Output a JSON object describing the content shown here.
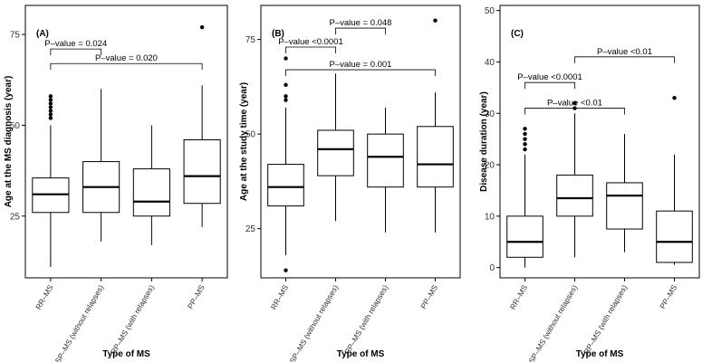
{
  "figure": {
    "background": "#ffffff",
    "line_color": "#000000",
    "box_fill": "#ffffff"
  },
  "chart_data": [
    {
      "type": "boxplot",
      "panel": "(A)",
      "xlabel": "Type of MS",
      "ylabel": "Age at the MS diagnosis (year)",
      "ylim": [
        8,
        83
      ],
      "yticks": [
        25,
        50,
        75
      ],
      "categories": [
        "RR–MS",
        "SP–MS (without relapses)",
        "RP–MS (with relapses)",
        "PP–MS"
      ],
      "boxes": [
        {
          "whisker_low": 11,
          "q1": 26,
          "median": 31,
          "q3": 35.5,
          "whisker_high": 50,
          "outliers": [
            52,
            53,
            54,
            55,
            56,
            57,
            58
          ]
        },
        {
          "whisker_low": 18,
          "q1": 26,
          "median": 33,
          "q3": 40,
          "whisker_high": 60,
          "outliers": []
        },
        {
          "whisker_low": 17,
          "q1": 25,
          "median": 29,
          "q3": 38,
          "whisker_high": 50,
          "outliers": []
        },
        {
          "whisker_low": 22,
          "q1": 28.5,
          "median": 36,
          "q3": 46,
          "whisker_high": 61,
          "outliers": [
            77
          ]
        }
      ],
      "annotations": [
        {
          "text": "P–value = 0.024",
          "from": 0,
          "to": 1,
          "y": 71
        },
        {
          "text": "P–value = 0.020",
          "from": 0,
          "to": 3,
          "y": 67
        }
      ]
    },
    {
      "type": "boxplot",
      "panel": "(B)",
      "xlabel": "Type of MS",
      "ylabel": "Age at the study time (year)",
      "ylim": [
        12,
        84
      ],
      "yticks": [
        25,
        50,
        75
      ],
      "categories": [
        "RR–MS",
        "SP–MS (without relapses)",
        "RP–MS (with relapses)",
        "PP–MS"
      ],
      "boxes": [
        {
          "whisker_low": 18,
          "q1": 31,
          "median": 36,
          "q3": 42,
          "whisker_high": 57,
          "outliers": [
            14,
            59,
            60,
            63,
            70
          ]
        },
        {
          "whisker_low": 27,
          "q1": 39,
          "median": 46,
          "q3": 51,
          "whisker_high": 66,
          "outliers": []
        },
        {
          "whisker_low": 24,
          "q1": 36,
          "median": 44,
          "q3": 50,
          "whisker_high": 57,
          "outliers": []
        },
        {
          "whisker_low": 24,
          "q1": 36,
          "median": 42,
          "q3": 52,
          "whisker_high": 61,
          "outliers": [
            80
          ]
        }
      ],
      "annotations": [
        {
          "text": "P–value = 0.048",
          "from": 1,
          "to": 2,
          "y": 78
        },
        {
          "text": "P–value <0.0001",
          "from": 0,
          "to": 1,
          "y": 73
        },
        {
          "text": "P–value = 0.001",
          "from": 0,
          "to": 3,
          "y": 67
        }
      ]
    },
    {
      "type": "boxplot",
      "panel": "(C)",
      "xlabel": "Type of MS",
      "ylabel": "Disease duration (year)",
      "ylim": [
        -2,
        51
      ],
      "yticks": [
        0,
        10,
        20,
        30,
        40,
        50
      ],
      "categories": [
        "RR–MS",
        "SP–MS (without relapses)",
        "RP–MS (with relapses)",
        "PP–MS"
      ],
      "boxes": [
        {
          "whisker_low": 0,
          "q1": 2,
          "median": 5,
          "q3": 10,
          "whisker_high": 22,
          "outliers": [
            23,
            24,
            25,
            26,
            27
          ]
        },
        {
          "whisker_low": 2,
          "q1": 10,
          "median": 13.5,
          "q3": 18,
          "whisker_high": 30,
          "outliers": [
            31,
            32
          ]
        },
        {
          "whisker_low": 3,
          "q1": 7.5,
          "median": 14,
          "q3": 16.5,
          "whisker_high": 26,
          "outliers": []
        },
        {
          "whisker_low": 0.5,
          "q1": 1,
          "median": 5,
          "q3": 11,
          "whisker_high": 22,
          "outliers": [
            33
          ]
        }
      ],
      "annotations": [
        {
          "text": "P–value <0.01",
          "from": 1,
          "to": 3,
          "y": 41
        },
        {
          "text": "P–value <0.0001",
          "from": 0,
          "to": 1,
          "y": 36
        },
        {
          "text": "P–value <0.01",
          "from": 0,
          "to": 2,
          "y": 31
        }
      ]
    }
  ]
}
